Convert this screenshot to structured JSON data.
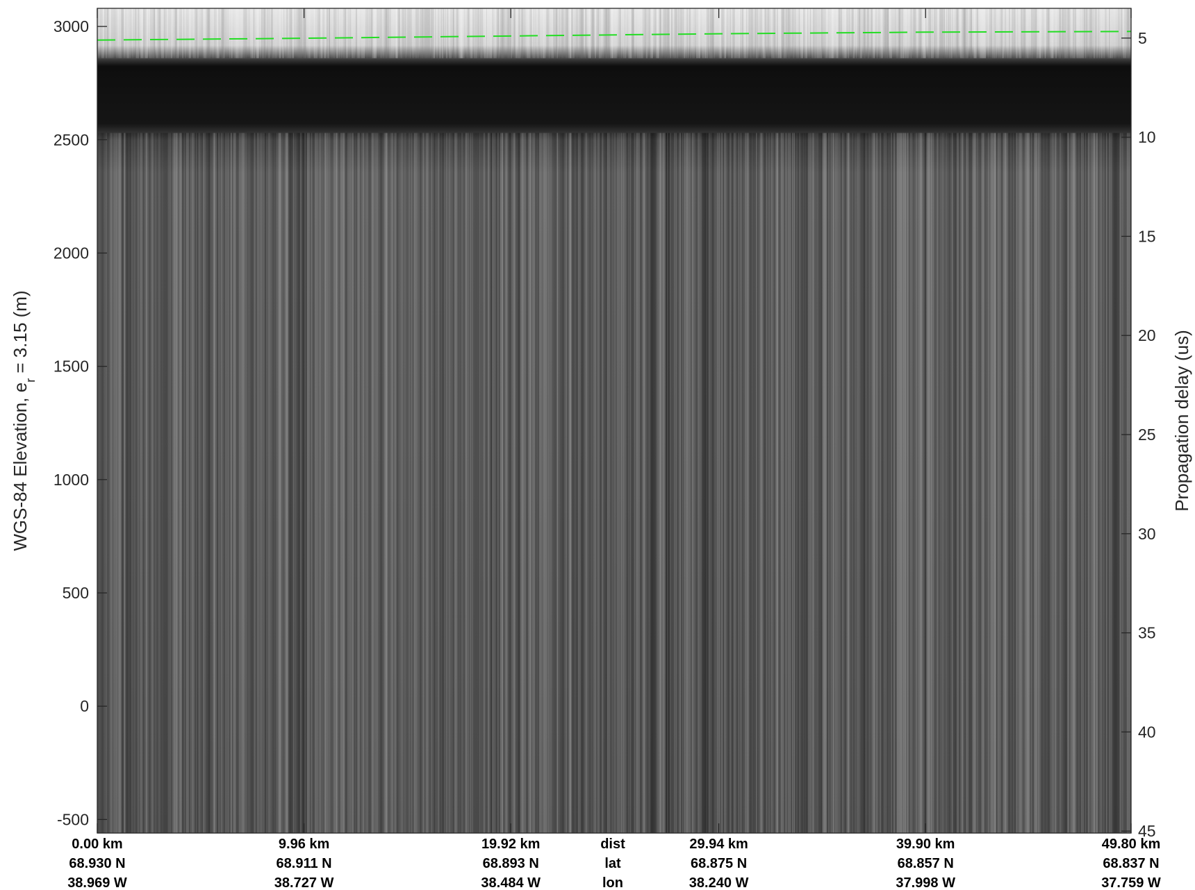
{
  "chart_data": {
    "type": "heatmap",
    "title": "",
    "colormap": "gray",
    "left_axis": {
      "label": "WGS-84 Elevation, e",
      "label_sub": "r",
      "label_tail": " = 3.15 (m)",
      "ylim": [
        -560,
        3080
      ],
      "ticks": [
        3000,
        2500,
        2000,
        1500,
        1000,
        500,
        0,
        -500
      ]
    },
    "right_axis": {
      "label": "Propagation delay (us)",
      "ylim": [
        45.1,
        3.5
      ],
      "ticks": [
        5,
        10,
        15,
        20,
        25,
        30,
        35,
        40,
        45
      ]
    },
    "x_axis": {
      "xlim": [
        0,
        49.8
      ],
      "dist_km": [
        "0.00 km",
        "9.96 km",
        "19.92 km",
        "29.94 km",
        "39.90 km",
        "49.80 km"
      ],
      "lat": [
        "68.930 N",
        "68.911 N",
        "68.893 N",
        "68.875 N",
        "68.857 N",
        "68.837 N"
      ],
      "lon": [
        "38.969 W",
        "38.727 W",
        "38.484 W",
        "38.240 W",
        "37.998 W",
        "37.759 W"
      ],
      "row_labels": [
        "dist",
        "lat",
        "lon"
      ],
      "tick_values_km": [
        0,
        9.96,
        19.92,
        29.94,
        39.9,
        49.8
      ]
    },
    "surface_line": {
      "color": "#22dd22",
      "style": "dashed",
      "x_km": [
        0,
        10,
        20,
        30,
        40,
        49.8
      ],
      "elevation_m": [
        2940,
        2948,
        2958,
        2968,
        2975,
        2978
      ]
    },
    "image_layers": {
      "surface_elevation_m": 2880,
      "dark_band_top_m": 2860,
      "dark_band_bottom_m": 2530
    },
    "grid": false,
    "legend": "none"
  }
}
